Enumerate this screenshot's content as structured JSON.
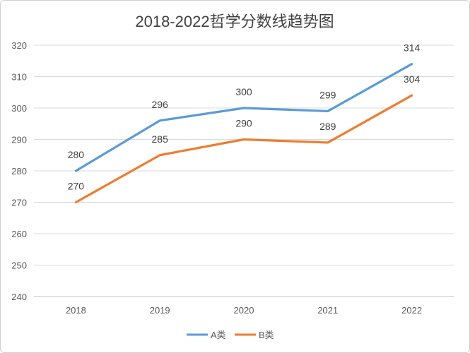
{
  "chart_data": {
    "type": "line",
    "title": "2018-2022哲学分数线趋势图",
    "categories": [
      "2018",
      "2019",
      "2020",
      "2021",
      "2022"
    ],
    "series": [
      {
        "name": "A类",
        "values": [
          280,
          296,
          300,
          299,
          314
        ],
        "color": "#5b9bd5"
      },
      {
        "name": "B类",
        "values": [
          270,
          285,
          290,
          289,
          304
        ],
        "color": "#ed7d31"
      }
    ],
    "yticks": [
      240,
      250,
      260,
      270,
      280,
      290,
      300,
      310,
      320
    ],
    "ylim": [
      240,
      320
    ],
    "grid": true,
    "legend_position": "bottom",
    "data_labels": true
  }
}
